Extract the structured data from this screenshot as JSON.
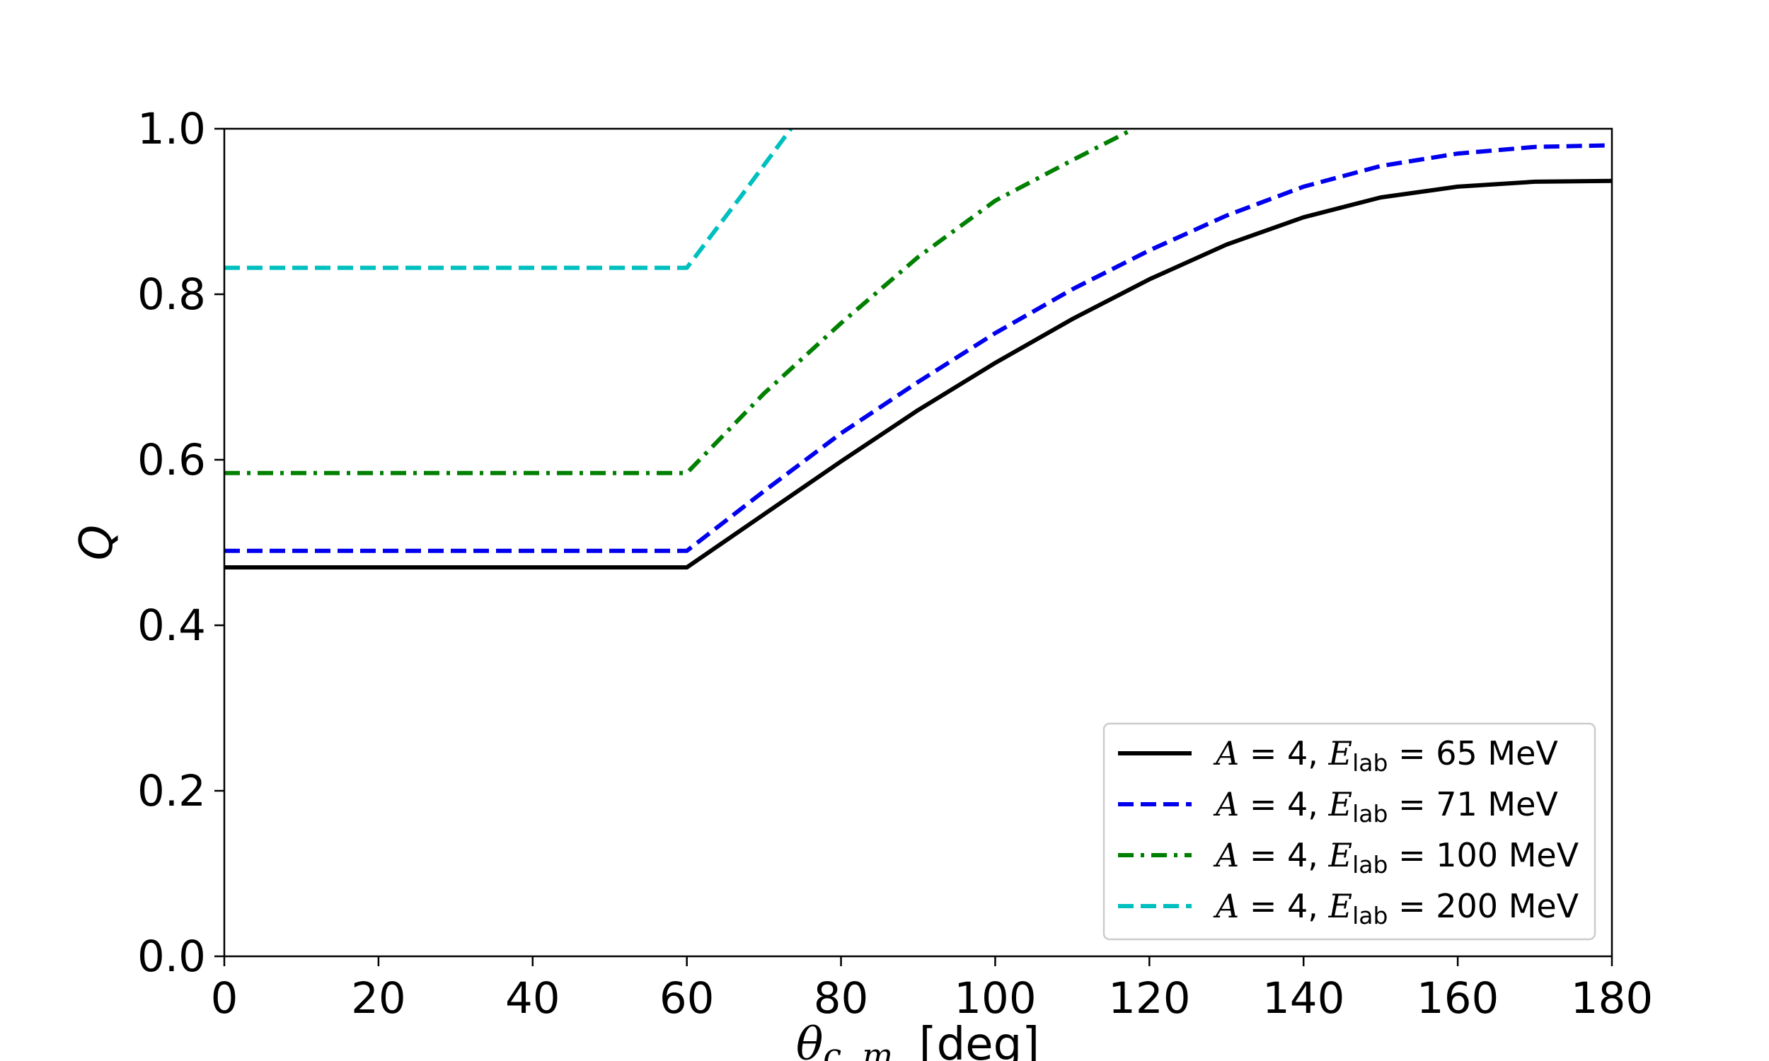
{
  "chart_data": {
    "type": "line",
    "xlabel": {
      "symbol": "θ",
      "sub": "c. m.",
      "unit": "[deg]"
    },
    "ylabel": "Q",
    "xlim": [
      0,
      180
    ],
    "ylim": [
      0.0,
      1.0
    ],
    "xticks": [
      "0",
      "20",
      "40",
      "60",
      "80",
      "100",
      "120",
      "140",
      "160",
      "180"
    ],
    "yticks": [
      "0.0",
      "0.2",
      "0.4",
      "0.6",
      "0.8",
      "1.0"
    ],
    "grid": false,
    "legend_position": "lower-right",
    "series": [
      {
        "name": "A = 4, E_lab = 65 MeV",
        "label_parts": {
          "a": "A",
          "a_val": "= 4,",
          "e": "E",
          "e_sub": "lab",
          "e_val": "= 65 MeV"
        },
        "color": "#000000",
        "style": "solid",
        "x": [
          0,
          60,
          70,
          80,
          90,
          100,
          110,
          120,
          130,
          140,
          150,
          160,
          170,
          180
        ],
        "y": [
          0.47,
          0.47,
          0.534,
          0.598,
          0.66,
          0.717,
          0.77,
          0.818,
          0.86,
          0.893,
          0.917,
          0.93,
          0.936,
          0.937
        ]
      },
      {
        "name": "A = 4, E_lab = 71 MeV",
        "label_parts": {
          "a": "A",
          "a_val": "= 4,",
          "e": "E",
          "e_sub": "lab",
          "e_val": "= 71 MeV"
        },
        "color": "#0000ee",
        "style": "dashed",
        "x": [
          0,
          60,
          70,
          80,
          90,
          100,
          110,
          120,
          130,
          140,
          150,
          160,
          170,
          180
        ],
        "y": [
          0.49,
          0.49,
          0.562,
          0.632,
          0.694,
          0.753,
          0.806,
          0.853,
          0.895,
          0.93,
          0.955,
          0.97,
          0.978,
          0.98
        ]
      },
      {
        "name": "A = 4, E_lab = 100 MeV",
        "label_parts": {
          "a": "A",
          "a_val": "= 4,",
          "e": "E",
          "e_sub": "lab",
          "e_val": "= 100 MeV"
        },
        "color": "#008000",
        "style": "dashdot",
        "x": [
          0,
          60,
          70,
          80,
          90,
          100,
          110,
          118
        ],
        "y": [
          0.584,
          0.584,
          0.68,
          0.765,
          0.845,
          0.913,
          0.962,
          1.0
        ]
      },
      {
        "name": "A = 4, E_lab = 200 MeV",
        "label_parts": {
          "a": "A",
          "a_val": "= 4,",
          "e": "E",
          "e_sub": "lab",
          "e_val": "= 200 MeV"
        },
        "color": "#00bfbf",
        "style": "dashed",
        "x": [
          0,
          60,
          67,
          73.5
        ],
        "y": [
          0.832,
          0.832,
          0.918,
          1.0
        ]
      }
    ]
  }
}
